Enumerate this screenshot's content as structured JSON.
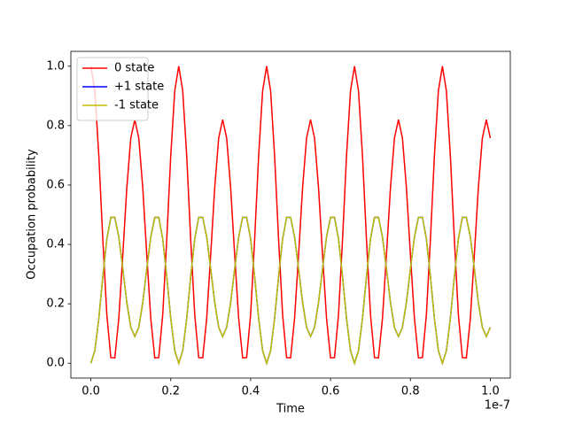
{
  "chart_data": {
    "type": "line",
    "xlabel": "Time",
    "ylabel": "Occupation probability",
    "x_offset_label": "1e-7",
    "x": [
      0,
      0.01,
      0.02,
      0.03,
      0.04,
      0.05,
      0.06,
      0.07,
      0.08,
      0.09,
      0.1,
      0.11,
      0.12,
      0.13,
      0.14,
      0.15,
      0.16,
      0.17,
      0.18,
      0.19,
      0.2,
      0.21,
      0.22,
      0.23,
      0.24,
      0.25,
      0.26,
      0.27,
      0.28,
      0.29,
      0.3,
      0.31,
      0.32,
      0.33,
      0.34,
      0.35,
      0.36,
      0.37,
      0.38,
      0.39,
      0.4,
      0.41,
      0.42,
      0.43,
      0.44,
      0.45,
      0.46,
      0.47,
      0.48,
      0.49,
      0.5,
      0.51,
      0.52,
      0.53,
      0.54,
      0.55,
      0.56,
      0.57,
      0.58,
      0.59,
      0.6,
      0.61,
      0.62,
      0.63,
      0.64,
      0.65,
      0.66,
      0.67,
      0.68,
      0.69,
      0.7,
      0.71,
      0.72,
      0.73,
      0.74,
      0.75,
      0.76,
      0.77,
      0.78,
      0.79,
      0.8,
      0.81,
      0.82,
      0.83,
      0.84,
      0.85,
      0.86,
      0.87,
      0.88,
      0.89,
      0.9,
      0.91,
      0.92,
      0.93,
      0.94,
      0.95,
      0.96,
      0.97,
      0.98,
      0.99,
      1.0
    ],
    "series": [
      {
        "name": "0 state",
        "color": "#ff0000",
        "values": [
          1.0,
          0.917,
          0.698,
          0.416,
          0.164,
          0.019,
          0.018,
          0.151,
          0.365,
          0.59,
          0.758,
          0.82,
          0.758,
          0.59,
          0.365,
          0.151,
          0.018,
          0.019,
          0.164,
          0.416,
          0.698,
          0.917,
          1.0,
          0.917,
          0.698,
          0.416,
          0.164,
          0.019,
          0.018,
          0.151,
          0.365,
          0.59,
          0.758,
          0.82,
          0.758,
          0.59,
          0.365,
          0.151,
          0.018,
          0.019,
          0.164,
          0.416,
          0.698,
          0.917,
          1.0,
          0.917,
          0.698,
          0.416,
          0.164,
          0.019,
          0.018,
          0.151,
          0.365,
          0.59,
          0.758,
          0.82,
          0.758,
          0.59,
          0.365,
          0.151,
          0.018,
          0.019,
          0.164,
          0.416,
          0.698,
          0.917,
          1.0,
          0.917,
          0.698,
          0.416,
          0.164,
          0.019,
          0.018,
          0.151,
          0.365,
          0.59,
          0.758,
          0.82,
          0.758,
          0.59,
          0.365,
          0.151,
          0.018,
          0.019,
          0.164,
          0.416,
          0.698,
          0.917,
          1.0,
          0.917,
          0.698,
          0.416,
          0.164,
          0.019,
          0.018,
          0.151,
          0.365,
          0.59,
          0.758,
          0.82,
          0.758
        ]
      },
      {
        "name": "+1 state",
        "color": "#0000ff",
        "values": [
          0.0,
          0.042,
          0.151,
          0.292,
          0.418,
          0.491,
          0.491,
          0.425,
          0.318,
          0.205,
          0.121,
          0.09,
          0.121,
          0.205,
          0.318,
          0.425,
          0.491,
          0.491,
          0.418,
          0.292,
          0.151,
          0.042,
          0.0,
          0.042,
          0.151,
          0.292,
          0.418,
          0.491,
          0.491,
          0.425,
          0.318,
          0.205,
          0.121,
          0.09,
          0.121,
          0.205,
          0.318,
          0.425,
          0.491,
          0.491,
          0.418,
          0.292,
          0.151,
          0.042,
          0.0,
          0.042,
          0.151,
          0.292,
          0.418,
          0.491,
          0.491,
          0.425,
          0.318,
          0.205,
          0.121,
          0.09,
          0.121,
          0.205,
          0.318,
          0.425,
          0.491,
          0.491,
          0.418,
          0.292,
          0.151,
          0.042,
          0.0,
          0.042,
          0.151,
          0.292,
          0.418,
          0.491,
          0.491,
          0.425,
          0.318,
          0.205,
          0.121,
          0.09,
          0.121,
          0.205,
          0.318,
          0.425,
          0.491,
          0.491,
          0.418,
          0.292,
          0.151,
          0.042,
          0.0,
          0.042,
          0.151,
          0.292,
          0.418,
          0.491,
          0.491,
          0.425,
          0.318,
          0.205,
          0.121,
          0.09,
          0.121
        ]
      },
      {
        "name": "-1 state",
        "color": "#bfbf00",
        "values": [
          0.0,
          0.042,
          0.151,
          0.292,
          0.418,
          0.491,
          0.491,
          0.425,
          0.318,
          0.205,
          0.121,
          0.09,
          0.121,
          0.205,
          0.318,
          0.425,
          0.491,
          0.491,
          0.418,
          0.292,
          0.151,
          0.042,
          0.0,
          0.042,
          0.151,
          0.292,
          0.418,
          0.491,
          0.491,
          0.425,
          0.318,
          0.205,
          0.121,
          0.09,
          0.121,
          0.205,
          0.318,
          0.425,
          0.491,
          0.491,
          0.418,
          0.292,
          0.151,
          0.042,
          0.0,
          0.042,
          0.151,
          0.292,
          0.418,
          0.491,
          0.491,
          0.425,
          0.318,
          0.205,
          0.121,
          0.09,
          0.121,
          0.205,
          0.318,
          0.425,
          0.491,
          0.491,
          0.418,
          0.292,
          0.151,
          0.042,
          0.0,
          0.042,
          0.151,
          0.292,
          0.418,
          0.491,
          0.491,
          0.425,
          0.318,
          0.205,
          0.121,
          0.09,
          0.121,
          0.205,
          0.318,
          0.425,
          0.491,
          0.491,
          0.418,
          0.292,
          0.151,
          0.042,
          0.0,
          0.042,
          0.151,
          0.292,
          0.418,
          0.491,
          0.491,
          0.425,
          0.318,
          0.205,
          0.121,
          0.09,
          0.121
        ]
      }
    ],
    "xlim": [
      -0.05,
      1.05
    ],
    "xticks": [
      {
        "value": 0,
        "label": "0.0"
      },
      {
        "value": 0.2,
        "label": "0.2"
      },
      {
        "value": 0.4,
        "label": "0.4"
      },
      {
        "value": 0.6,
        "label": "0.6"
      },
      {
        "value": 0.8,
        "label": "0.8"
      },
      {
        "value": 1,
        "label": "1.0"
      }
    ],
    "ylim": [
      -0.05,
      1.05
    ],
    "yticks": [
      {
        "value": 0,
        "label": "0.0"
      },
      {
        "value": 0.2,
        "label": "0.2"
      },
      {
        "value": 0.4,
        "label": "0.4"
      },
      {
        "value": 0.6,
        "label": "0.6"
      },
      {
        "value": 0.8,
        "label": "0.8"
      },
      {
        "value": 1,
        "label": "1.0"
      }
    ],
    "grid": false,
    "legend": "upper left"
  }
}
